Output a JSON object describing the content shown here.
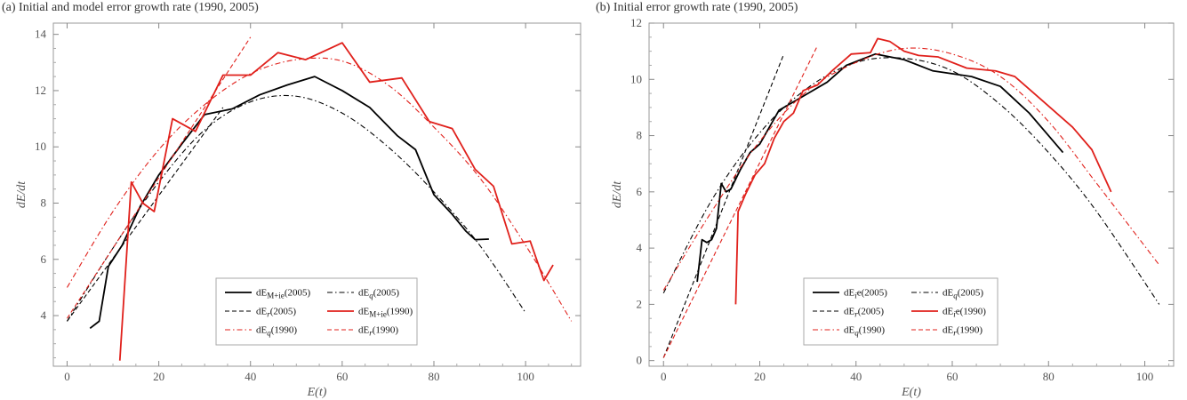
{
  "chart_data": [
    {
      "type": "line",
      "title": "(a) Initial and model error growth rate (1990, 2005)",
      "xlabel": "E(t)",
      "ylabel": "dE/dt",
      "xlim": [
        -3,
        112
      ],
      "ylim": [
        2.2,
        14.4
      ],
      "xticks": [
        0,
        20,
        40,
        60,
        80,
        100
      ],
      "yticks": [
        4,
        6,
        8,
        10,
        12,
        14
      ],
      "grid": false,
      "legend_position": "bottom-center",
      "series": [
        {
          "name": "dE_{M+ie}(2005)",
          "color": "#000000",
          "style": "solid",
          "x": [
            5,
            7,
            9,
            12,
            16,
            20,
            25,
            30,
            36,
            42,
            48,
            54,
            60,
            66,
            72,
            76,
            80,
            84,
            87,
            89,
            92
          ],
          "y": [
            3.55,
            3.8,
            5.75,
            6.5,
            7.9,
            9.0,
            10.1,
            11.15,
            11.35,
            11.85,
            12.2,
            12.5,
            12.0,
            11.4,
            10.4,
            9.9,
            8.3,
            7.6,
            7.0,
            6.7,
            6.72
          ]
        },
        {
          "name": "dE_q(2005)",
          "color": "#000000",
          "style": "dashdot",
          "x": [
            0,
            10,
            20,
            30,
            40,
            50,
            60,
            70,
            80,
            90,
            100
          ],
          "y": [
            3.8,
            6.4,
            8.75,
            10.6,
            11.6,
            11.8,
            11.2,
            10.0,
            8.4,
            6.5,
            4.1
          ]
        },
        {
          "name": "dE_r(2005)",
          "color": "#000000",
          "style": "dashed",
          "x": [
            0,
            34
          ],
          "y": [
            3.8,
            11.4
          ]
        },
        {
          "name": "dE_{M+ie}(1990)",
          "color": "#e0201b",
          "style": "solid",
          "x": [
            11.5,
            14,
            16.5,
            19,
            23,
            28,
            34,
            40,
            46,
            52,
            60,
            66,
            73,
            79,
            84,
            89,
            93,
            97,
            101,
            104,
            106
          ],
          "y": [
            2.4,
            8.75,
            8.0,
            7.7,
            11.0,
            10.55,
            12.55,
            12.55,
            13.35,
            13.1,
            13.7,
            12.3,
            12.45,
            10.9,
            10.65,
            9.2,
            8.6,
            6.55,
            6.65,
            5.25,
            5.8
          ]
        },
        {
          "name": "dE_q(1990)",
          "color": "#e0201b",
          "style": "dashdot",
          "x": [
            0,
            10,
            20,
            30,
            40,
            50,
            60,
            70,
            80,
            90,
            100,
            110
          ],
          "y": [
            5.0,
            7.7,
            9.9,
            11.5,
            12.6,
            13.1,
            13.05,
            12.2,
            10.7,
            8.9,
            6.5,
            3.8
          ]
        },
        {
          "name": "dE_r(1990)",
          "color": "#e0201b",
          "style": "dashed",
          "x": [
            0,
            40
          ],
          "y": [
            3.9,
            13.9
          ]
        }
      ],
      "legend_rows": [
        [
          "dE_{M+ie}(2005)",
          "dE_q(2005)"
        ],
        [
          "dE_r(2005)",
          "dE_{M+ie}(1990)"
        ],
        [
          "dE_q(1990)",
          "dE_r(1990)"
        ]
      ]
    },
    {
      "type": "line",
      "title": "(b) Initial error growth rate (1990, 2005)",
      "xlabel": "E(t)",
      "ylabel": "dE/dt",
      "xlim": [
        -3,
        106
      ],
      "ylim": [
        -0.2,
        12
      ],
      "xticks": [
        0,
        20,
        40,
        60,
        80,
        100
      ],
      "yticks": [
        0,
        2,
        4,
        6,
        8,
        10,
        12
      ],
      "grid": false,
      "legend_position": "bottom-center",
      "series": [
        {
          "name": "dE_ie(2005)",
          "color": "#000000",
          "style": "solid",
          "x": [
            7,
            8,
            9,
            10,
            11,
            12,
            13,
            14,
            16,
            18,
            20,
            22,
            24,
            27,
            30,
            34,
            38,
            44,
            50,
            56,
            64,
            70,
            76,
            80,
            83
          ],
          "y": [
            2.8,
            4.3,
            4.2,
            4.3,
            4.7,
            6.3,
            6.0,
            6.1,
            6.8,
            7.4,
            7.7,
            8.3,
            8.9,
            9.2,
            9.5,
            9.9,
            10.5,
            10.9,
            10.7,
            10.3,
            10.1,
            9.75,
            8.8,
            8.0,
            7.4
          ]
        },
        {
          "name": "dE_q(2005)",
          "color": "#000000",
          "style": "dashdot",
          "x": [
            0,
            10,
            20,
            30,
            40,
            50,
            60,
            70,
            80,
            90,
            103
          ],
          "y": [
            2.4,
            5.7,
            8.1,
            9.7,
            10.6,
            10.75,
            10.3,
            9.1,
            7.4,
            5.3,
            2.0
          ]
        },
        {
          "name": "dE_r(2005)",
          "color": "#000000",
          "style": "dashed",
          "x": [
            0,
            25
          ],
          "y": [
            0.1,
            10.9
          ]
        },
        {
          "name": "dE_ie(1990)",
          "color": "#e0201b",
          "style": "solid",
          "x": [
            15,
            15.5,
            17,
            19,
            21,
            23,
            25,
            27,
            29,
            32,
            35,
            39,
            43,
            44.5,
            47,
            50,
            53,
            57,
            63,
            69,
            73,
            77,
            81,
            85,
            89,
            93
          ],
          "y": [
            2.0,
            5.3,
            5.9,
            6.6,
            7.0,
            7.9,
            8.5,
            8.8,
            9.6,
            9.8,
            10.3,
            10.9,
            10.95,
            11.45,
            11.35,
            11.0,
            10.85,
            10.8,
            10.4,
            10.3,
            10.1,
            9.5,
            8.9,
            8.3,
            7.5,
            6.0
          ]
        },
        {
          "name": "dE_q(1990)",
          "color": "#e0201b",
          "style": "dashdot",
          "x": [
            0,
            10,
            20,
            30,
            40,
            50,
            60,
            70,
            80,
            90,
            103
          ],
          "y": [
            2.5,
            5.3,
            7.8,
            9.6,
            10.6,
            11.1,
            10.9,
            10.1,
            8.5,
            6.3,
            3.4
          ]
        },
        {
          "name": "dE_r(1990)",
          "color": "#e0201b",
          "style": "dashed",
          "x": [
            0,
            32
          ],
          "y": [
            0.1,
            11.2
          ]
        }
      ],
      "legend_rows": [
        [
          "dE_ie(2005)",
          "dE_q(2005)"
        ],
        [
          "dE_r(2005)",
          "dE_ie(1990)"
        ],
        [
          "dE_q(1990)",
          "dE_r(1990)"
        ]
      ]
    }
  ]
}
